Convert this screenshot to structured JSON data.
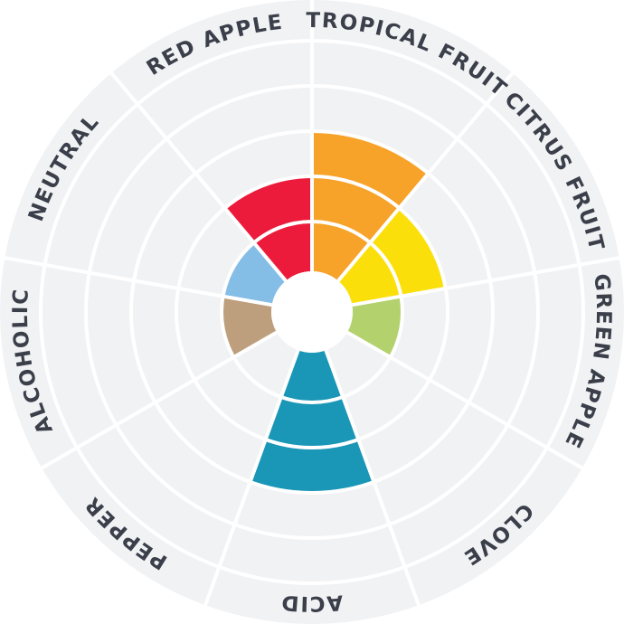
{
  "chart_data": {
    "type": "radial-bar",
    "title": "",
    "scale_max": 5,
    "grid": true,
    "background_color": "#F1F2F4",
    "categories": [
      "TROPICAL FRUIT",
      "CITRUS FRUIT",
      "GREEN APPLE",
      "CLOVE",
      "ACID",
      "PEPPER",
      "ALCOHOLIC",
      "NEUTRAL",
      "RED APPLE"
    ],
    "values": [
      3,
      2,
      1,
      0,
      3,
      0,
      1,
      1,
      2
    ],
    "colors": [
      "#F7A229",
      "#FBDF0B",
      "#B3D16C",
      "#9CA3AF",
      "#1A96B6",
      "#9CA3AF",
      "#BE9F7D",
      "#84BDE6",
      "#EC1B3B"
    ]
  }
}
